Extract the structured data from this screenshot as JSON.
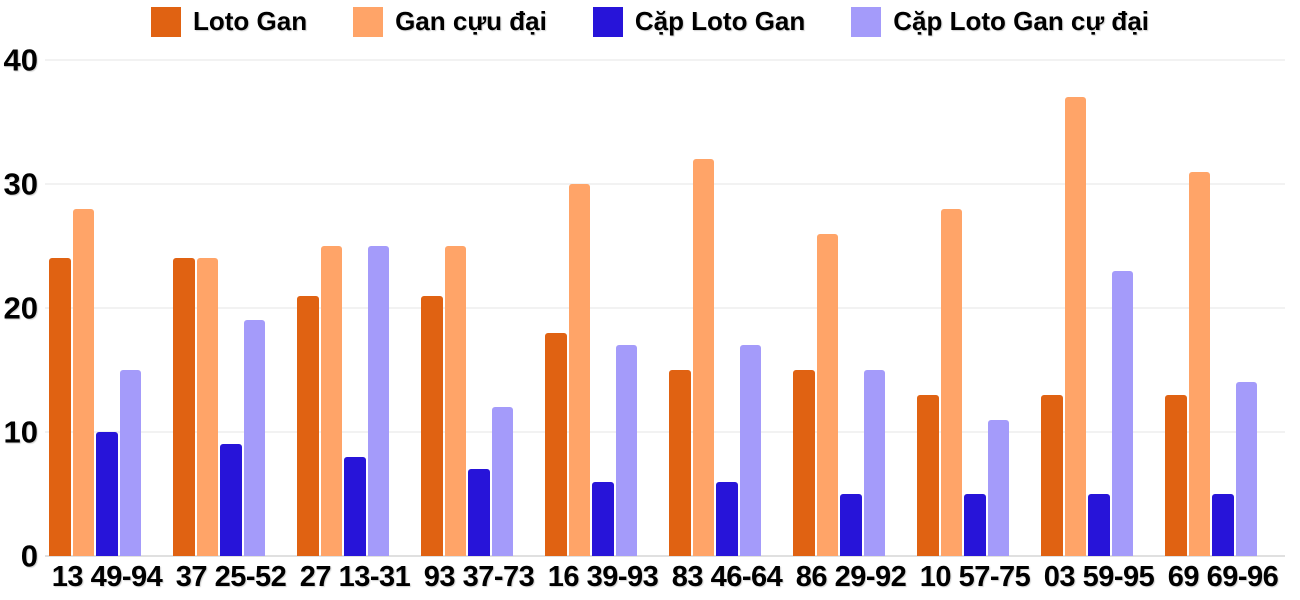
{
  "chart_data": {
    "type": "bar",
    "title": "",
    "xlabel": "",
    "ylabel": "",
    "ylim": [
      0,
      40
    ],
    "yticks": [
      0,
      10,
      20,
      30,
      40
    ],
    "grid": true,
    "legend_position": "top",
    "categories": [
      "13 49-94",
      "37 25-52",
      "27 13-31",
      "93 37-73",
      "16 39-93",
      "83 46-64",
      "86 29-92",
      "10 57-75",
      "03 59-95",
      "69 69-96"
    ],
    "series": [
      {
        "name": "Loto Gan",
        "color": "#e06212",
        "values": [
          24,
          24,
          21,
          21,
          18,
          15,
          15,
          13,
          13,
          13
        ]
      },
      {
        "name": "Gan cựu đại",
        "color": "#ffa468",
        "values": [
          28,
          24,
          25,
          25,
          30,
          32,
          26,
          28,
          37,
          31
        ]
      },
      {
        "name": "Cặp Loto Gan",
        "color": "#2714d9",
        "values": [
          10,
          9,
          8,
          7,
          6,
          6,
          5,
          5,
          5,
          5
        ]
      },
      {
        "name": "Cặp Loto Gan cự đại",
        "color": "#a49bfa",
        "values": [
          15,
          19,
          25,
          12,
          17,
          17,
          15,
          11,
          23,
          14
        ]
      }
    ],
    "colors": {
      "gridline": "#e6e6e6",
      "axis_line": "#c2c2c2",
      "text": "#000000"
    }
  }
}
